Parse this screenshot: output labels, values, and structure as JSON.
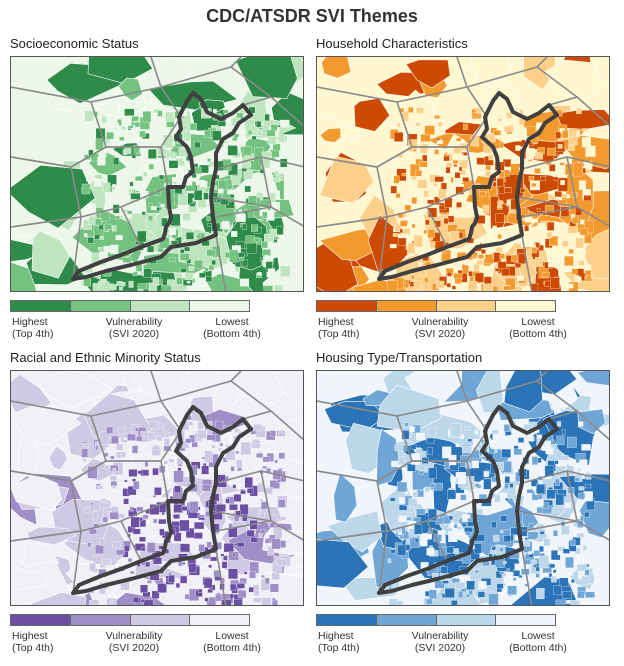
{
  "title": "CDC/ATSDR SVI Themes",
  "legend": {
    "highest": "Highest",
    "highest_sub": "(Top 4th)",
    "vulnerability": "Vulnerability",
    "vulnerability_sub": "(SVI 2020)",
    "lowest": "Lowest",
    "lowest_sub": "(Bottom 4th)"
  },
  "panels": [
    {
      "title": "Socioeconomic Status",
      "colors": [
        "#2e8b4a",
        "#74c27f",
        "#bfe5bf",
        "#ecf7e9"
      ]
    },
    {
      "title": "Household Characteristics",
      "colors": [
        "#cc4a02",
        "#f39a2e",
        "#fdd08a",
        "#fff7cf"
      ]
    },
    {
      "title": "Racial and Ethnic Minority Status",
      "colors": [
        "#6a4fa3",
        "#9e8fc6",
        "#cfc9e3",
        "#f2f0f7"
      ]
    },
    {
      "title": "Housing Type/Transportation",
      "colors": [
        "#2b74b8",
        "#6fa6d6",
        "#bcd6ea",
        "#eff5fb"
      ]
    }
  ]
}
